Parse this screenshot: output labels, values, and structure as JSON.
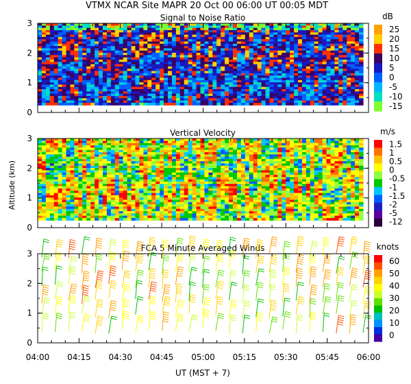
{
  "header": {
    "title": "VTMX   NCAR Site   MAPR 20 Oct 00   06:00 UT   00:05   MDT"
  },
  "x_axis": {
    "label": "UT  (MST + 7)",
    "ticks": [
      "04:00",
      "04:15",
      "04:30",
      "04:45",
      "05:00",
      "05:15",
      "05:30",
      "05:45",
      "06:00"
    ]
  },
  "y_label": "Altitude (km)",
  "palette": [
    "#3b0060",
    "#5500a0",
    "#2020d0",
    "#0070ff",
    "#00c8ff",
    "#00e8a0",
    "#00c000",
    "#90ff40",
    "#ffff00",
    "#ffc000",
    "#ff7000",
    "#ff0000",
    "#c00000",
    "#ffffff"
  ],
  "chart_data": [
    {
      "type": "heatmap",
      "title": "Signal to Noise Ratio",
      "units": "dB",
      "ylim": [
        0,
        3
      ],
      "yticks": [
        "0",
        "1",
        "2",
        "3"
      ],
      "colorbar": {
        "labels": [
          "25",
          "20",
          "15",
          "10",
          "5",
          "0",
          "-5",
          "-10",
          "-15"
        ],
        "colors": [
          "#ffa000",
          "#ffd000",
          "#ff3000",
          "#3b0060",
          "#1818c0",
          "#0060ff",
          "#00b8ff",
          "#00e0c0",
          "#80ff30"
        ]
      },
      "data_range_km": [
        0.25,
        3.0
      ],
      "time_range": [
        "04:00",
        "06:00"
      ]
    },
    {
      "type": "heatmap",
      "title": "Vertical Velocity",
      "units": "m/s",
      "ylim": [
        0,
        3
      ],
      "yticks": [
        "0",
        "1",
        "2",
        "3"
      ],
      "colorbar": {
        "labels": [
          "1.5",
          "1",
          "0.5",
          "0",
          "-0.5",
          "-1",
          "-1.5",
          "-2",
          "-5",
          "-12"
        ],
        "colors": [
          "#ff0000",
          "#ff7000",
          "#ffc000",
          "#ffff00",
          "#90ff40",
          "#00c800",
          "#00c8ff",
          "#0060ff",
          "#2020c0",
          "#5a00a0",
          "#2a0040"
        ]
      },
      "data_range_km": [
        0.25,
        3.0
      ],
      "time_range": [
        "04:00",
        "06:00"
      ]
    },
    {
      "type": "scatter",
      "title": "FCA 5 Minute Averaged Winds",
      "units": "knots",
      "ylim": [
        0,
        3
      ],
      "yticks": [
        "0",
        "1",
        "2",
        "3"
      ],
      "colorbar": {
        "labels": [
          "60",
          "50",
          "40",
          "30",
          "20",
          "10",
          "0"
        ],
        "colors": [
          "#ff0000",
          "#ff5000",
          "#ffa000",
          "#ffd000",
          "#ffff00",
          "#c8ff30",
          "#60e000",
          "#00c000",
          "#00c0c0",
          "#0090ff",
          "#0030e0",
          "#4400a0"
        ]
      },
      "time_range": [
        "04:00",
        "06:00"
      ],
      "interval_minutes": 5
    }
  ]
}
